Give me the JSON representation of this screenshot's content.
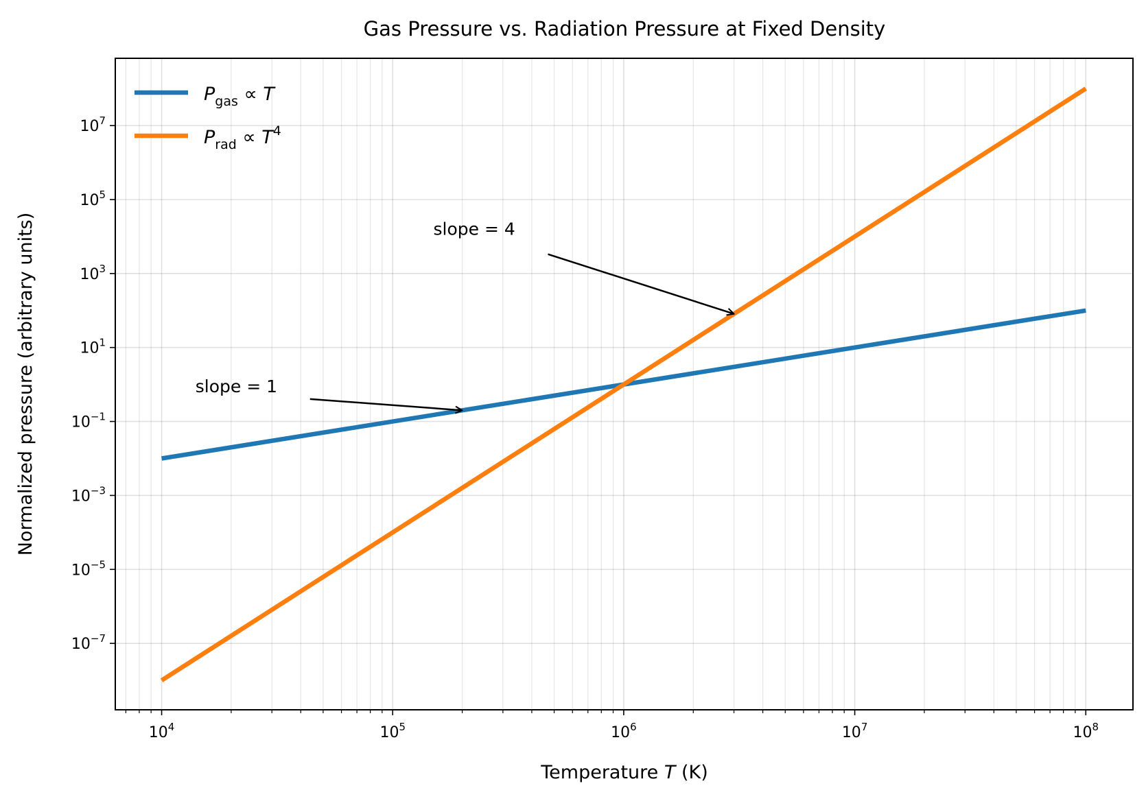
{
  "chart_data": {
    "type": "line",
    "title": "Gas Pressure vs. Radiation Pressure at Fixed Density",
    "xlabel": "Temperature T (K)",
    "ylabel": "Normalized pressure (arbitrary units)",
    "xscale": "log",
    "yscale": "log",
    "xlim": [
      6300.0,
      160000000.0
    ],
    "ylim": [
      1.6e-09,
      660000000.0
    ],
    "grid": true,
    "legend_placement": "top-left",
    "x_ticks": [
      {
        "value": 10000.0,
        "base": "10",
        "exp": "4"
      },
      {
        "value": 100000.0,
        "base": "10",
        "exp": "5"
      },
      {
        "value": 1000000.0,
        "base": "10",
        "exp": "6"
      },
      {
        "value": 10000000.0,
        "base": "10",
        "exp": "7"
      },
      {
        "value": 100000000.0,
        "base": "10",
        "exp": "8"
      }
    ],
    "y_ticks": [
      {
        "value": 1e-07,
        "base": "10",
        "exp": "−7"
      },
      {
        "value": 1e-05,
        "base": "10",
        "exp": "−5"
      },
      {
        "value": 0.001,
        "base": "10",
        "exp": "−3"
      },
      {
        "value": 0.1,
        "base": "10",
        "exp": "−1"
      },
      {
        "value": 10.0,
        "base": "10",
        "exp": "1"
      },
      {
        "value": 1000.0,
        "base": "10",
        "exp": "3"
      },
      {
        "value": 100000.0,
        "base": "10",
        "exp": "5"
      },
      {
        "value": 10000000.0,
        "base": "10",
        "exp": "7"
      }
    ],
    "series": [
      {
        "name": "P_gas ∝ T",
        "label_main": "P",
        "label_sub": "gas",
        "label_rest": " ∝ T",
        "label_sup": "",
        "color": "#1f77b4",
        "x": [
          10000.0,
          100000000.0
        ],
        "y": [
          0.01,
          100.0
        ]
      },
      {
        "name": "P_rad ∝ T^4",
        "label_main": "P",
        "label_sub": "rad",
        "label_rest": " ∝ T",
        "label_sup": "4",
        "color": "#ff7f0e",
        "x": [
          10000.0,
          100000000.0
        ],
        "y": [
          1e-08,
          100000000.0
        ]
      }
    ],
    "annotations": [
      {
        "text": "slope  = 4",
        "xy": [
          3000000.0,
          81
        ],
        "xytext": [
          150000.0,
          11000.0
        ]
      },
      {
        "text": "slope  = 1",
        "xy": [
          200000.0,
          0.2
        ],
        "xytext": [
          14000.0,
          0.62
        ]
      }
    ]
  }
}
